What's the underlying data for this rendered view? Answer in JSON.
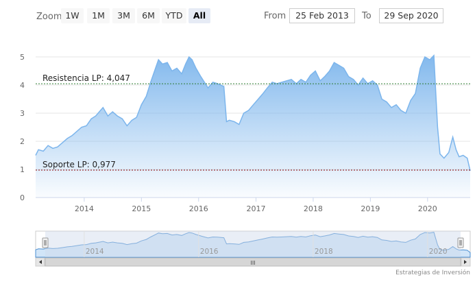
{
  "range_selector": {
    "zoom_label": "Zoom",
    "buttons": [
      {
        "label": "1W",
        "selected": false
      },
      {
        "label": "1M",
        "selected": false
      },
      {
        "label": "3M",
        "selected": false
      },
      {
        "label": "6M",
        "selected": false
      },
      {
        "label": "YTD",
        "selected": false
      },
      {
        "label": "All",
        "selected": true
      }
    ],
    "from_label": "From",
    "from_value": "25 Feb 2013",
    "to_label": "To",
    "to_value": "29 Sep 2020"
  },
  "credit": "Estrategias de Inversión",
  "colors": {
    "series_line": "#7cb5ec",
    "resistance_line": "#2e7d32",
    "support_line": "#8b0000",
    "navigator_mask": "#cfd9ea"
  },
  "chart_data": {
    "type": "area",
    "x_axis": {
      "type": "datetime",
      "range": [
        "2013-02-25",
        "2020-09-29"
      ],
      "tick_labels": [
        "2014",
        "2015",
        "2016",
        "2017",
        "2018",
        "2019",
        "2020"
      ]
    },
    "y_axis": {
      "range": [
        0,
        5
      ],
      "tick_labels": [
        "0",
        "1",
        "2",
        "3",
        "4",
        "5"
      ],
      "grid": true
    },
    "legend": "none",
    "plot_lines": [
      {
        "label": "Resistencia LP: 4,047",
        "value": 4.047,
        "style": "dashed"
      },
      {
        "label": "Soporte LP: 0,977",
        "value": 0.977,
        "style": "dashed"
      }
    ],
    "navigator": {
      "tick_labels": [
        "2014",
        "2016",
        "2018",
        "2020"
      ],
      "scrollbar_grip": "III"
    },
    "series": [
      {
        "points": [
          [
            "2013-02-25",
            1.5
          ],
          [
            "2013-03-15",
            1.7
          ],
          [
            "2013-04-15",
            1.65
          ],
          [
            "2013-05-15",
            1.85
          ],
          [
            "2013-06-15",
            1.75
          ],
          [
            "2013-07-15",
            1.8
          ],
          [
            "2013-08-15",
            1.95
          ],
          [
            "2013-09-15",
            2.1
          ],
          [
            "2013-10-15",
            2.2
          ],
          [
            "2013-11-15",
            2.35
          ],
          [
            "2013-12-15",
            2.5
          ],
          [
            "2014-01-15",
            2.55
          ],
          [
            "2014-02-15",
            2.8
          ],
          [
            "2014-03-15",
            2.9
          ],
          [
            "2014-04-15",
            3.1
          ],
          [
            "2014-05-01",
            3.2
          ],
          [
            "2014-06-01",
            2.9
          ],
          [
            "2014-07-01",
            3.05
          ],
          [
            "2014-08-01",
            2.9
          ],
          [
            "2014-09-01",
            2.8
          ],
          [
            "2014-10-01",
            2.55
          ],
          [
            "2014-11-01",
            2.75
          ],
          [
            "2014-12-01",
            2.85
          ],
          [
            "2015-01-01",
            3.3
          ],
          [
            "2015-02-01",
            3.6
          ],
          [
            "2015-03-01",
            4.1
          ],
          [
            "2015-04-01",
            4.6
          ],
          [
            "2015-04-20",
            4.9
          ],
          [
            "2015-05-15",
            4.75
          ],
          [
            "2015-06-15",
            4.8
          ],
          [
            "2015-07-15",
            4.5
          ],
          [
            "2015-08-15",
            4.6
          ],
          [
            "2015-09-15",
            4.4
          ],
          [
            "2015-10-10",
            4.75
          ],
          [
            "2015-11-01",
            5.0
          ],
          [
            "2015-11-20",
            4.9
          ],
          [
            "2015-12-15",
            4.6
          ],
          [
            "2016-01-15",
            4.3
          ],
          [
            "2016-02-01",
            4.15
          ],
          [
            "2016-03-01",
            3.9
          ],
          [
            "2016-04-01",
            4.1
          ],
          [
            "2016-05-01",
            4.05
          ],
          [
            "2016-06-10",
            3.95
          ],
          [
            "2016-06-27",
            2.7
          ],
          [
            "2016-07-15",
            2.75
          ],
          [
            "2016-08-15",
            2.7
          ],
          [
            "2016-09-15",
            2.6
          ],
          [
            "2016-10-15",
            3.0
          ],
          [
            "2016-11-15",
            3.1
          ],
          [
            "2016-12-15",
            3.3
          ],
          [
            "2017-01-15",
            3.5
          ],
          [
            "2017-02-15",
            3.7
          ],
          [
            "2017-03-15",
            3.9
          ],
          [
            "2017-04-15",
            4.1
          ],
          [
            "2017-05-15",
            4.05
          ],
          [
            "2017-06-15",
            4.1
          ],
          [
            "2017-07-15",
            4.15
          ],
          [
            "2017-08-15",
            4.2
          ],
          [
            "2017-09-15",
            4.05
          ],
          [
            "2017-10-15",
            4.2
          ],
          [
            "2017-11-15",
            4.1
          ],
          [
            "2017-12-15",
            4.35
          ],
          [
            "2018-01-15",
            4.5
          ],
          [
            "2018-02-15",
            4.15
          ],
          [
            "2018-03-15",
            4.3
          ],
          [
            "2018-04-15",
            4.5
          ],
          [
            "2018-05-15",
            4.8
          ],
          [
            "2018-06-15",
            4.7
          ],
          [
            "2018-07-15",
            4.6
          ],
          [
            "2018-08-15",
            4.3
          ],
          [
            "2018-09-15",
            4.2
          ],
          [
            "2018-10-15",
            4.0
          ],
          [
            "2018-11-15",
            4.25
          ],
          [
            "2018-12-15",
            4.05
          ],
          [
            "2019-01-15",
            4.15
          ],
          [
            "2019-02-15",
            4.0
          ],
          [
            "2019-03-15",
            3.5
          ],
          [
            "2019-04-15",
            3.4
          ],
          [
            "2019-05-15",
            3.2
          ],
          [
            "2019-06-15",
            3.3
          ],
          [
            "2019-07-15",
            3.1
          ],
          [
            "2019-08-15",
            3.0
          ],
          [
            "2019-09-15",
            3.45
          ],
          [
            "2019-10-15",
            3.7
          ],
          [
            "2019-11-15",
            4.6
          ],
          [
            "2019-12-15",
            5.0
          ],
          [
            "2020-01-15",
            4.9
          ],
          [
            "2020-02-10",
            5.05
          ],
          [
            "2020-02-20",
            4.0
          ],
          [
            "2020-03-05",
            2.5
          ],
          [
            "2020-03-20",
            1.55
          ],
          [
            "2020-04-15",
            1.4
          ],
          [
            "2020-05-15",
            1.6
          ],
          [
            "2020-06-10",
            2.15
          ],
          [
            "2020-07-01",
            1.7
          ],
          [
            "2020-07-20",
            1.45
          ],
          [
            "2020-08-15",
            1.5
          ],
          [
            "2020-09-10",
            1.4
          ],
          [
            "2020-09-29",
            0.95
          ]
        ]
      }
    ]
  }
}
